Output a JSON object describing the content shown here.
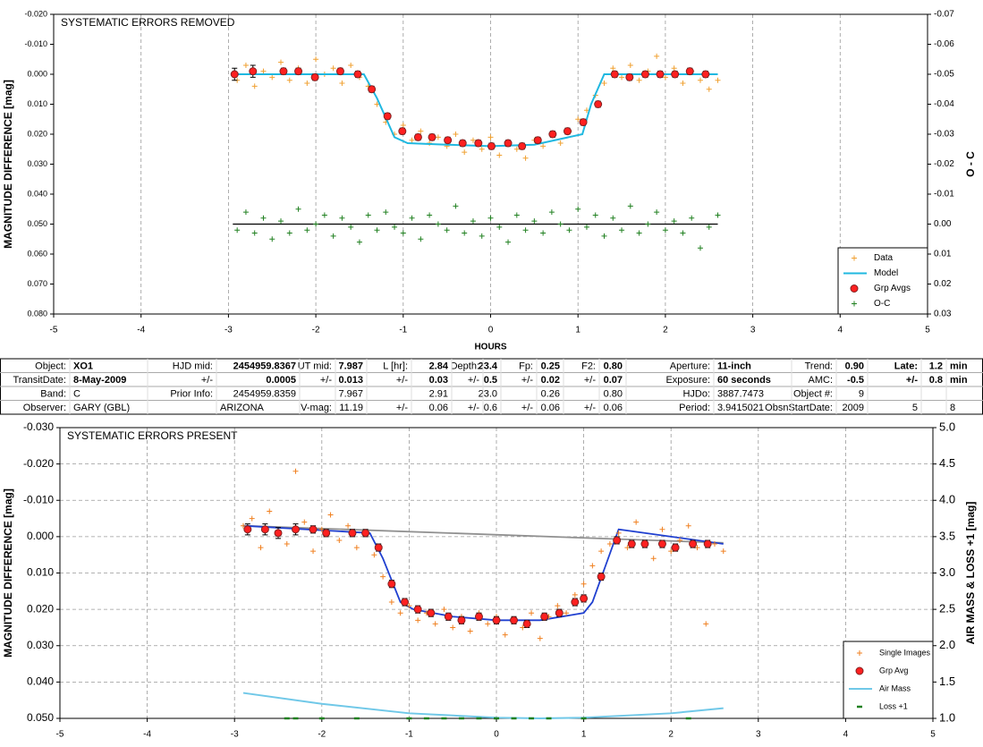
{
  "chart_data": [
    {
      "type": "scatter",
      "annotation": "SYSTEMATIC ERRORS REMOVED",
      "xlabel": "HOURS",
      "ylabel": "MAGNITUDE DIFFERENCE [mag]",
      "y2label": "O - C",
      "xlim": [
        -5,
        5
      ],
      "xticks": [
        -5,
        -4,
        -3,
        -2,
        -1,
        0,
        1,
        2,
        3,
        4,
        5
      ],
      "ylim": [
        -0.02,
        0.08
      ],
      "y_inverted": true,
      "yticks": [
        {
          "value": -0.02,
          "label": "-0.020"
        },
        {
          "value": -0.01,
          "label": "-0.010"
        },
        {
          "value": 0,
          "label": "0.000"
        },
        {
          "value": 0.01,
          "label": "0.010"
        },
        {
          "value": 0.02,
          "label": "0.020"
        },
        {
          "value": 0.03,
          "label": "0.030"
        },
        {
          "value": 0.04,
          "label": "0.040"
        },
        {
          "value": 0.05,
          "label": "0.050"
        },
        {
          "value": 0.06,
          "label": "0.060"
        },
        {
          "value": 0.07,
          "label": "0.070"
        },
        {
          "value": 0.08,
          "label": "0.080"
        }
      ],
      "y2lim": [
        -0.07,
        0.03
      ],
      "y2_inverted": true,
      "y2ticks": [
        {
          "value": -0.07,
          "label": "-0.07"
        },
        {
          "value": -0.06,
          "label": "-0.06"
        },
        {
          "value": -0.05,
          "label": "-0.05"
        },
        {
          "value": -0.04,
          "label": "-0.04"
        },
        {
          "value": -0.03,
          "label": "-0.03"
        },
        {
          "value": -0.02,
          "label": "-0.02"
        },
        {
          "value": -0.01,
          "label": "-0.01"
        },
        {
          "value": 0,
          "label": "0.00"
        },
        {
          "value": 0.01,
          "label": "0.01"
        },
        {
          "value": 0.02,
          "label": "0.02"
        },
        {
          "value": 0.03,
          "label": "0.03"
        }
      ],
      "xgrid": true,
      "ygrid": false,
      "legend": "lower right",
      "series": [
        {
          "name": "Data",
          "color": "#f0a030",
          "marker": "plus",
          "line": false,
          "x": [
            -2.9,
            -2.8,
            -2.7,
            -2.6,
            -2.5,
            -2.4,
            -2.3,
            -2.2,
            -2.1,
            -2.0,
            -1.9,
            -1.8,
            -1.7,
            -1.6,
            -1.5,
            -1.4,
            -1.3,
            -1.2,
            -1.1,
            -1.0,
            -0.9,
            -0.8,
            -0.7,
            -0.6,
            -0.5,
            -0.4,
            -0.3,
            -0.2,
            -0.1,
            0,
            0.1,
            0.2,
            0.3,
            0.4,
            0.5,
            0.6,
            0.7,
            0.8,
            0.9,
            1.0,
            1.1,
            1.2,
            1.3,
            1.4,
            1.5,
            1.6,
            1.7,
            1.8,
            1.9,
            2.0,
            2.1,
            2.2,
            2.3,
            2.4,
            2.5,
            2.6
          ],
          "values": [
            0.002,
            -0.003,
            0.004,
            -0.001,
            0.001,
            -0.004,
            0.002,
            -0.002,
            0.003,
            -0.005,
            0.0,
            -0.002,
            0.003,
            -0.003,
            0.001,
            0.004,
            0.01,
            0.016,
            0.02,
            0.017,
            0.022,
            0.019,
            0.023,
            0.021,
            0.024,
            0.02,
            0.026,
            0.022,
            0.025,
            0.021,
            0.027,
            0.023,
            0.025,
            0.028,
            0.022,
            0.024,
            0.02,
            0.023,
            0.019,
            0.015,
            0.012,
            0.007,
            0.003,
            -0.002,
            0.001,
            -0.003,
            0.002,
            -0.001,
            -0.006,
            0.001,
            -0.002,
            0.003,
            -0.001,
            0.002,
            0.005,
            0.002
          ]
        },
        {
          "name": "Model",
          "color": "#20b8e0",
          "marker": null,
          "line": true,
          "x": [
            -2.95,
            -1.45,
            -1.3,
            -1.1,
            -0.95,
            -0.5,
            0,
            0.5,
            1.05,
            1.15,
            1.3,
            2.6
          ],
          "values": [
            0,
            0,
            0.008,
            0.021,
            0.023,
            0.0235,
            0.024,
            0.0235,
            0.02,
            0.01,
            0.0,
            0.0
          ]
        },
        {
          "name": "Grp Avgs",
          "color": "#ff2020",
          "marker": "circle",
          "line": false,
          "x": [
            -2.93,
            -2.72,
            -2.37,
            -2.2,
            -2.01,
            -1.72,
            -1.52,
            -1.36,
            -1.18,
            -1.01,
            -0.83,
            -0.67,
            -0.49,
            -0.32,
            -0.14,
            0.01,
            0.2,
            0.36,
            0.54,
            0.71,
            0.88,
            1.06,
            1.23,
            1.42,
            1.59,
            1.77,
            1.94,
            2.11,
            2.28,
            2.46
          ],
          "values": [
            0.0,
            -0.001,
            -0.001,
            -0.001,
            0.001,
            -0.001,
            0.0,
            0.005,
            0.014,
            0.019,
            0.021,
            0.021,
            0.022,
            0.023,
            0.023,
            0.024,
            0.023,
            0.024,
            0.022,
            0.02,
            0.019,
            0.016,
            0.01,
            0.0,
            0.001,
            0.0,
            0.0,
            0.0,
            -0.001,
            0.0
          ],
          "errors": [
            0.002,
            0.002,
            0.001,
            0.001,
            0.001,
            0.001,
            0.001,
            0.001,
            0.001,
            0.001,
            0.001,
            0.001,
            0.001,
            0.001,
            0.001,
            0.001,
            0.001,
            0.001,
            0.001,
            0.001,
            0.001,
            0.001,
            0.001,
            0.001,
            0.001,
            0.001,
            0.001,
            0.001,
            0.001,
            0.001
          ]
        },
        {
          "name": "O-C",
          "color": "#208020",
          "marker": "plus",
          "line": false,
          "axis": "y2",
          "x": [
            -2.9,
            -2.8,
            -2.7,
            -2.6,
            -2.5,
            -2.4,
            -2.3,
            -2.2,
            -2.1,
            -2.0,
            -1.9,
            -1.8,
            -1.7,
            -1.6,
            -1.5,
            -1.4,
            -1.3,
            -1.2,
            -1.1,
            -1.0,
            -0.9,
            -0.8,
            -0.7,
            -0.6,
            -0.5,
            -0.4,
            -0.3,
            -0.2,
            -0.1,
            0,
            0.1,
            0.2,
            0.3,
            0.4,
            0.5,
            0.6,
            0.7,
            0.8,
            0.9,
            1.0,
            1.1,
            1.2,
            1.3,
            1.4,
            1.5,
            1.6,
            1.7,
            1.8,
            1.9,
            2.0,
            2.1,
            2.2,
            2.3,
            2.4,
            2.5,
            2.6
          ],
          "values": [
            0.002,
            -0.004,
            0.003,
            -0.002,
            0.005,
            -0.001,
            0.003,
            -0.005,
            0.002,
            0.0,
            -0.003,
            0.004,
            -0.002,
            0.001,
            0.006,
            -0.003,
            0.002,
            -0.004,
            0.001,
            0.003,
            -0.002,
            0.005,
            -0.003,
            0.0,
            0.002,
            -0.006,
            0.003,
            -0.001,
            0.004,
            -0.002,
            0.001,
            0.006,
            -0.003,
            0.002,
            -0.001,
            0.003,
            -0.004,
            0.0,
            0.002,
            -0.005,
            0.001,
            -0.003,
            0.004,
            -0.002,
            0.002,
            -0.006,
            0.003,
            0.0,
            -0.004,
            0.002,
            -0.001,
            0.003,
            -0.002,
            0.008,
            0.001,
            -0.003
          ]
        }
      ],
      "reference_lines": [
        {
          "color": "#000000",
          "axis": "y2",
          "x": [
            -2.95,
            2.6
          ],
          "values": [
            0,
            0
          ]
        }
      ]
    },
    {
      "type": "scatter",
      "annotation": "SYSTEMATIC ERRORS PRESENT",
      "ylabel": "MAGNITUDE DIFFERENCE [mag]",
      "y2label": "AIR MASS & LOSS +1 [mag]",
      "xlim": [
        -5,
        5
      ],
      "xticks": [
        -5,
        -4,
        -3,
        -2,
        -1,
        0,
        1,
        2,
        3,
        4,
        5
      ],
      "ylim": [
        -0.03,
        0.05
      ],
      "y_inverted": true,
      "yticks": [
        {
          "value": -0.03,
          "label": "-0.030"
        },
        {
          "value": -0.02,
          "label": "-0.020"
        },
        {
          "value": -0.01,
          "label": "-0.010"
        },
        {
          "value": 0,
          "label": "0.000"
        },
        {
          "value": 0.01,
          "label": "0.010"
        },
        {
          "value": 0.02,
          "label": "0.020"
        },
        {
          "value": 0.03,
          "label": "0.030"
        },
        {
          "value": 0.04,
          "label": "0.040"
        },
        {
          "value": 0.05,
          "label": "0.050"
        }
      ],
      "y2lim": [
        1,
        5
      ],
      "y2_inverted": false,
      "y2ticks": [
        {
          "value": 1,
          "label": "1.0"
        },
        {
          "value": 1.5,
          "label": "1.5"
        },
        {
          "value": 2,
          "label": "2.0"
        },
        {
          "value": 2.5,
          "label": "2.5"
        },
        {
          "value": 3,
          "label": "3.0"
        },
        {
          "value": 3.5,
          "label": "3.5"
        },
        {
          "value": 4,
          "label": "4.0"
        },
        {
          "value": 4.5,
          "label": "4.5"
        },
        {
          "value": 5,
          "label": "5.0"
        }
      ],
      "xgrid": true,
      "ygrid": true,
      "legend": "lower right",
      "series": [
        {
          "name": "Single Images",
          "color": "#f08020",
          "marker": "plus",
          "line": false,
          "x": [
            -2.9,
            -2.8,
            -2.7,
            -2.6,
            -2.5,
            -2.4,
            -2.3,
            -2.2,
            -2.1,
            -2.0,
            -1.9,
            -1.8,
            -1.7,
            -1.6,
            -1.5,
            -1.4,
            -1.3,
            -1.2,
            -1.1,
            -1.0,
            -0.9,
            -0.8,
            -0.7,
            -0.6,
            -0.5,
            -0.4,
            -0.3,
            -0.2,
            -0.1,
            0,
            0.1,
            0.2,
            0.3,
            0.4,
            0.5,
            0.6,
            0.7,
            0.8,
            0.9,
            1.0,
            1.1,
            1.2,
            1.3,
            1.4,
            1.5,
            1.6,
            1.7,
            1.8,
            1.9,
            2.0,
            2.1,
            2.2,
            2.3,
            2.4,
            2.5,
            2.6
          ],
          "values": [
            -0.003,
            -0.005,
            0.003,
            -0.007,
            -0.001,
            0.002,
            -0.018,
            -0.004,
            0.004,
            -0.002,
            -0.006,
            0.001,
            -0.003,
            0.003,
            -0.001,
            0.005,
            0.011,
            0.018,
            0.021,
            0.019,
            0.023,
            0.021,
            0.024,
            0.02,
            0.025,
            0.022,
            0.026,
            0.021,
            0.024,
            0.022,
            0.027,
            0.023,
            0.025,
            0.021,
            0.028,
            0.022,
            0.019,
            0.021,
            0.016,
            0.013,
            0.008,
            0.004,
            0.002,
            -0.001,
            0.003,
            -0.004,
            0.002,
            0.006,
            -0.002,
            0.004,
            0.001,
            -0.003,
            0.003,
            0.024,
            0.002,
            0.004
          ]
        },
        {
          "name": "Grp Avg",
          "color": "#ff2020",
          "marker": "circle",
          "line": false,
          "x": [
            -2.85,
            -2.65,
            -2.5,
            -2.3,
            -2.1,
            -1.95,
            -1.65,
            -1.5,
            -1.35,
            -1.2,
            -1.05,
            -0.9,
            -0.75,
            -0.55,
            -0.4,
            -0.2,
            0,
            0.2,
            0.35,
            0.55,
            0.72,
            0.9,
            1.0,
            1.2,
            1.38,
            1.55,
            1.7,
            1.9,
            2.05,
            2.25,
            2.42
          ],
          "values": [
            -0.002,
            -0.002,
            -0.001,
            -0.002,
            -0.002,
            -0.001,
            -0.001,
            -0.001,
            0.003,
            0.013,
            0.018,
            0.02,
            0.021,
            0.022,
            0.023,
            0.022,
            0.023,
            0.023,
            0.024,
            0.022,
            0.021,
            0.018,
            0.017,
            0.011,
            0.001,
            0.002,
            0.002,
            0.002,
            0.003,
            0.002,
            0.002
          ],
          "errors": [
            0.0015,
            0.0015,
            0.0015,
            0.0015,
            0.001,
            0.001,
            0.001,
            0.001,
            0.001,
            0.001,
            0.001,
            0.001,
            0.001,
            0.001,
            0.001,
            0.001,
            0.001,
            0.001,
            0.001,
            0.001,
            0.001,
            0.001,
            0.001,
            0.001,
            0.001,
            0.001,
            0.001,
            0.001,
            0.001,
            0.001,
            0.001
          ]
        },
        {
          "name": "Air Mass",
          "color": "#70c8e8",
          "marker": null,
          "line": true,
          "axis": "y2",
          "x": [
            -2.9,
            -2,
            -1,
            0,
            0.5,
            1,
            2,
            2.6
          ],
          "values": [
            1.35,
            1.2,
            1.07,
            1.01,
            1.0,
            1.01,
            1.07,
            1.14
          ]
        },
        {
          "name": "Loss +1",
          "color": "#208020",
          "marker": "dash",
          "line": false,
          "axis": "y2",
          "x": [
            -2.4,
            -2.3,
            -2.0,
            -1.6,
            -1.0,
            -0.8,
            -0.6,
            -0.4,
            -0.2,
            0,
            0.2,
            0.4,
            0.6,
            1.0,
            2.2
          ],
          "values": [
            1,
            1,
            1,
            1,
            1,
            1,
            1,
            1,
            1,
            1,
            1,
            1,
            1,
            1,
            1
          ]
        }
      ],
      "reference_lines": [
        {
          "color": "#909090",
          "axis": "y",
          "x": [
            -2.9,
            2.6
          ],
          "values": [
            -0.003,
            0.0017
          ]
        },
        {
          "color": "#2040d0",
          "axis": "y",
          "x": [
            -2.9,
            -1.45,
            -1.3,
            -1.1,
            -0.95,
            -0.5,
            0,
            0.5,
            1.0,
            1.1,
            1.25,
            1.4,
            2.6
          ],
          "values": [
            -0.003,
            -0.001,
            0.006,
            0.018,
            0.02,
            0.022,
            0.023,
            0.023,
            0.021,
            0.018,
            0.008,
            -0.002,
            0.002
          ]
        }
      ]
    }
  ],
  "table": {
    "rows": [
      [
        "Object:",
        "XO1",
        "HJD mid:",
        "2454959.8367",
        "UT mid:",
        "7.987",
        "L [hr]:",
        "2.84",
        "Depth:",
        "23.4",
        "Fp:",
        "0.25",
        "F2:",
        "0.80",
        "Aperture:",
        "11-inch",
        "Trend:",
        "0.90",
        "Late:",
        "1.2",
        "min"
      ],
      [
        "TransitDate:",
        "8-May-2009",
        "+/-",
        "0.0005",
        "+/-",
        "0.013",
        "+/-",
        "0.03",
        "+/-",
        "0.5",
        "+/-",
        "0.02",
        "+/-",
        "0.07",
        "Exposure:",
        "60 seconds",
        "AMC:",
        "-0.5",
        "+/-",
        "0.8",
        "min"
      ],
      [
        "Band:",
        "C",
        "Prior Info:",
        "2454959.8359",
        null,
        "7.967",
        null,
        "2.91",
        null,
        "23.0",
        null,
        "0.26",
        null,
        "0.80",
        "HJDo:",
        "3887.7473",
        "Object #:",
        "9",
        null,
        null,
        null
      ],
      [
        "Observer:",
        "GARY (GBL)",
        null,
        "ARIZONA",
        "V-mag:",
        "11.19",
        "+/-",
        "0.06",
        "+/-",
        "0.6",
        "+/-",
        "0.06",
        "+/-",
        "0.06",
        "Period:",
        "3.9415021",
        "ObsnStartDate:",
        "2009",
        "5",
        null,
        "8"
      ]
    ]
  }
}
